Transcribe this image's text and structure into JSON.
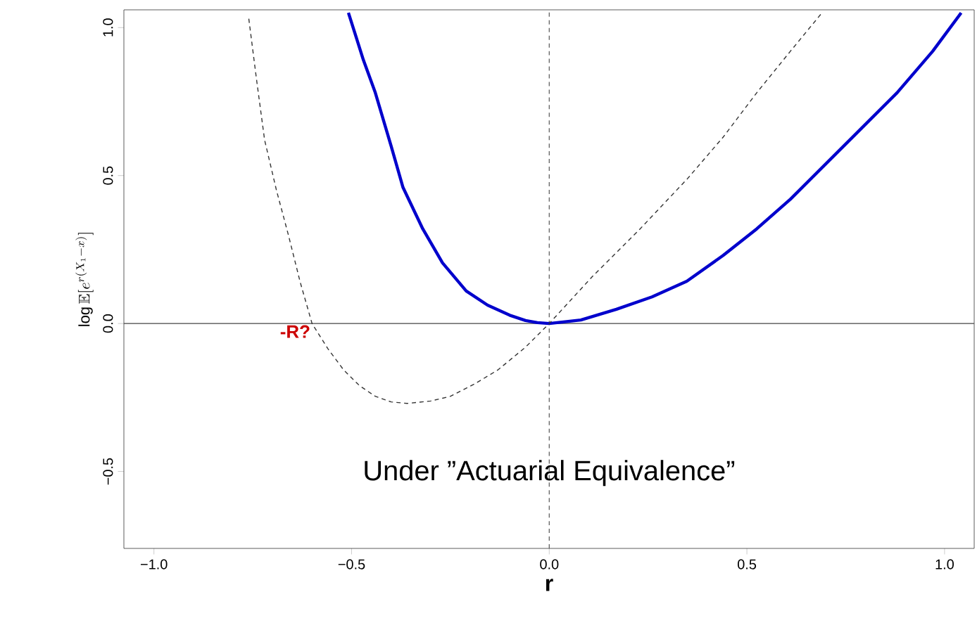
{
  "chart_data": {
    "type": "line",
    "xlabel": "r",
    "ylabel": "\\log\\mathbb{E}[e^{r(X_1-x)}]",
    "xlim": [
      -1.076,
      1.075
    ],
    "ylim": [
      -0.76,
      1.06
    ],
    "xticks": [
      {
        "value": -1,
        "label": "−1.0"
      },
      {
        "value": -0.5,
        "label": "−0.5"
      },
      {
        "value": 0,
        "label": "0.0"
      },
      {
        "value": 0.5,
        "label": "0.5"
      },
      {
        "value": 1,
        "label": "1.0"
      }
    ],
    "yticks": [
      {
        "value": -0.5,
        "label": "−0.5"
      },
      {
        "value": 0,
        "label": "0.0"
      },
      {
        "value": 0.5,
        "label": "0.5"
      },
      {
        "value": 1,
        "label": "1.0"
      }
    ],
    "grid": false,
    "marker": "none",
    "series": [
      {
        "color": "#0000cc",
        "line_style": "solid",
        "x": [
          -0.508,
          -0.47,
          -0.44,
          -0.4,
          -0.37,
          -0.32,
          -0.27,
          -0.21,
          -0.156,
          -0.1,
          -0.06,
          -0.03,
          0,
          0.08,
          0.17,
          0.26,
          0.348,
          0.44,
          0.525,
          0.61,
          0.7,
          0.79,
          0.88,
          0.97,
          1.042
        ],
        "values": [
          1.05,
          0.89,
          0.78,
          0.6,
          0.46,
          0.32,
          0.205,
          0.11,
          0.062,
          0.028,
          0.01,
          0.003,
          0,
          0.012,
          0.048,
          0.09,
          0.143,
          0.23,
          0.32,
          0.42,
          0.54,
          0.66,
          0.78,
          0.92,
          1.05
        ]
      },
      {
        "color": "#333333",
        "line_style": "dashed",
        "x": [
          -0.76,
          -0.74,
          -0.72,
          -0.69,
          -0.66,
          -0.63,
          -0.6,
          -0.56,
          -0.52,
          -0.48,
          -0.44,
          -0.4,
          -0.36,
          -0.3,
          -0.25,
          -0.19,
          -0.13,
          -0.06,
          0,
          0.11,
          0.23,
          0.35,
          0.44,
          0.525,
          0.61,
          0.69
        ],
        "values": [
          1.03,
          0.82,
          0.62,
          0.45,
          0.3,
          0.14,
          0,
          -0.085,
          -0.157,
          -0.21,
          -0.246,
          -0.265,
          -0.27,
          -0.262,
          -0.246,
          -0.205,
          -0.157,
          -0.08,
          0,
          0.16,
          0.32,
          0.49,
          0.63,
          0.78,
          0.92,
          1.05
        ]
      }
    ],
    "ref_lines": [
      {
        "axis": "x",
        "value": 0,
        "color": "#555555",
        "line_style": "dashed"
      },
      {
        "axis": "y",
        "value": 0,
        "color": "#444444",
        "line_style": "solid"
      }
    ],
    "annotations": [
      {
        "text": "-R?",
        "x": -0.6,
        "y": 0
      },
      "Under ”Actuarial Equivalence”"
    ]
  }
}
